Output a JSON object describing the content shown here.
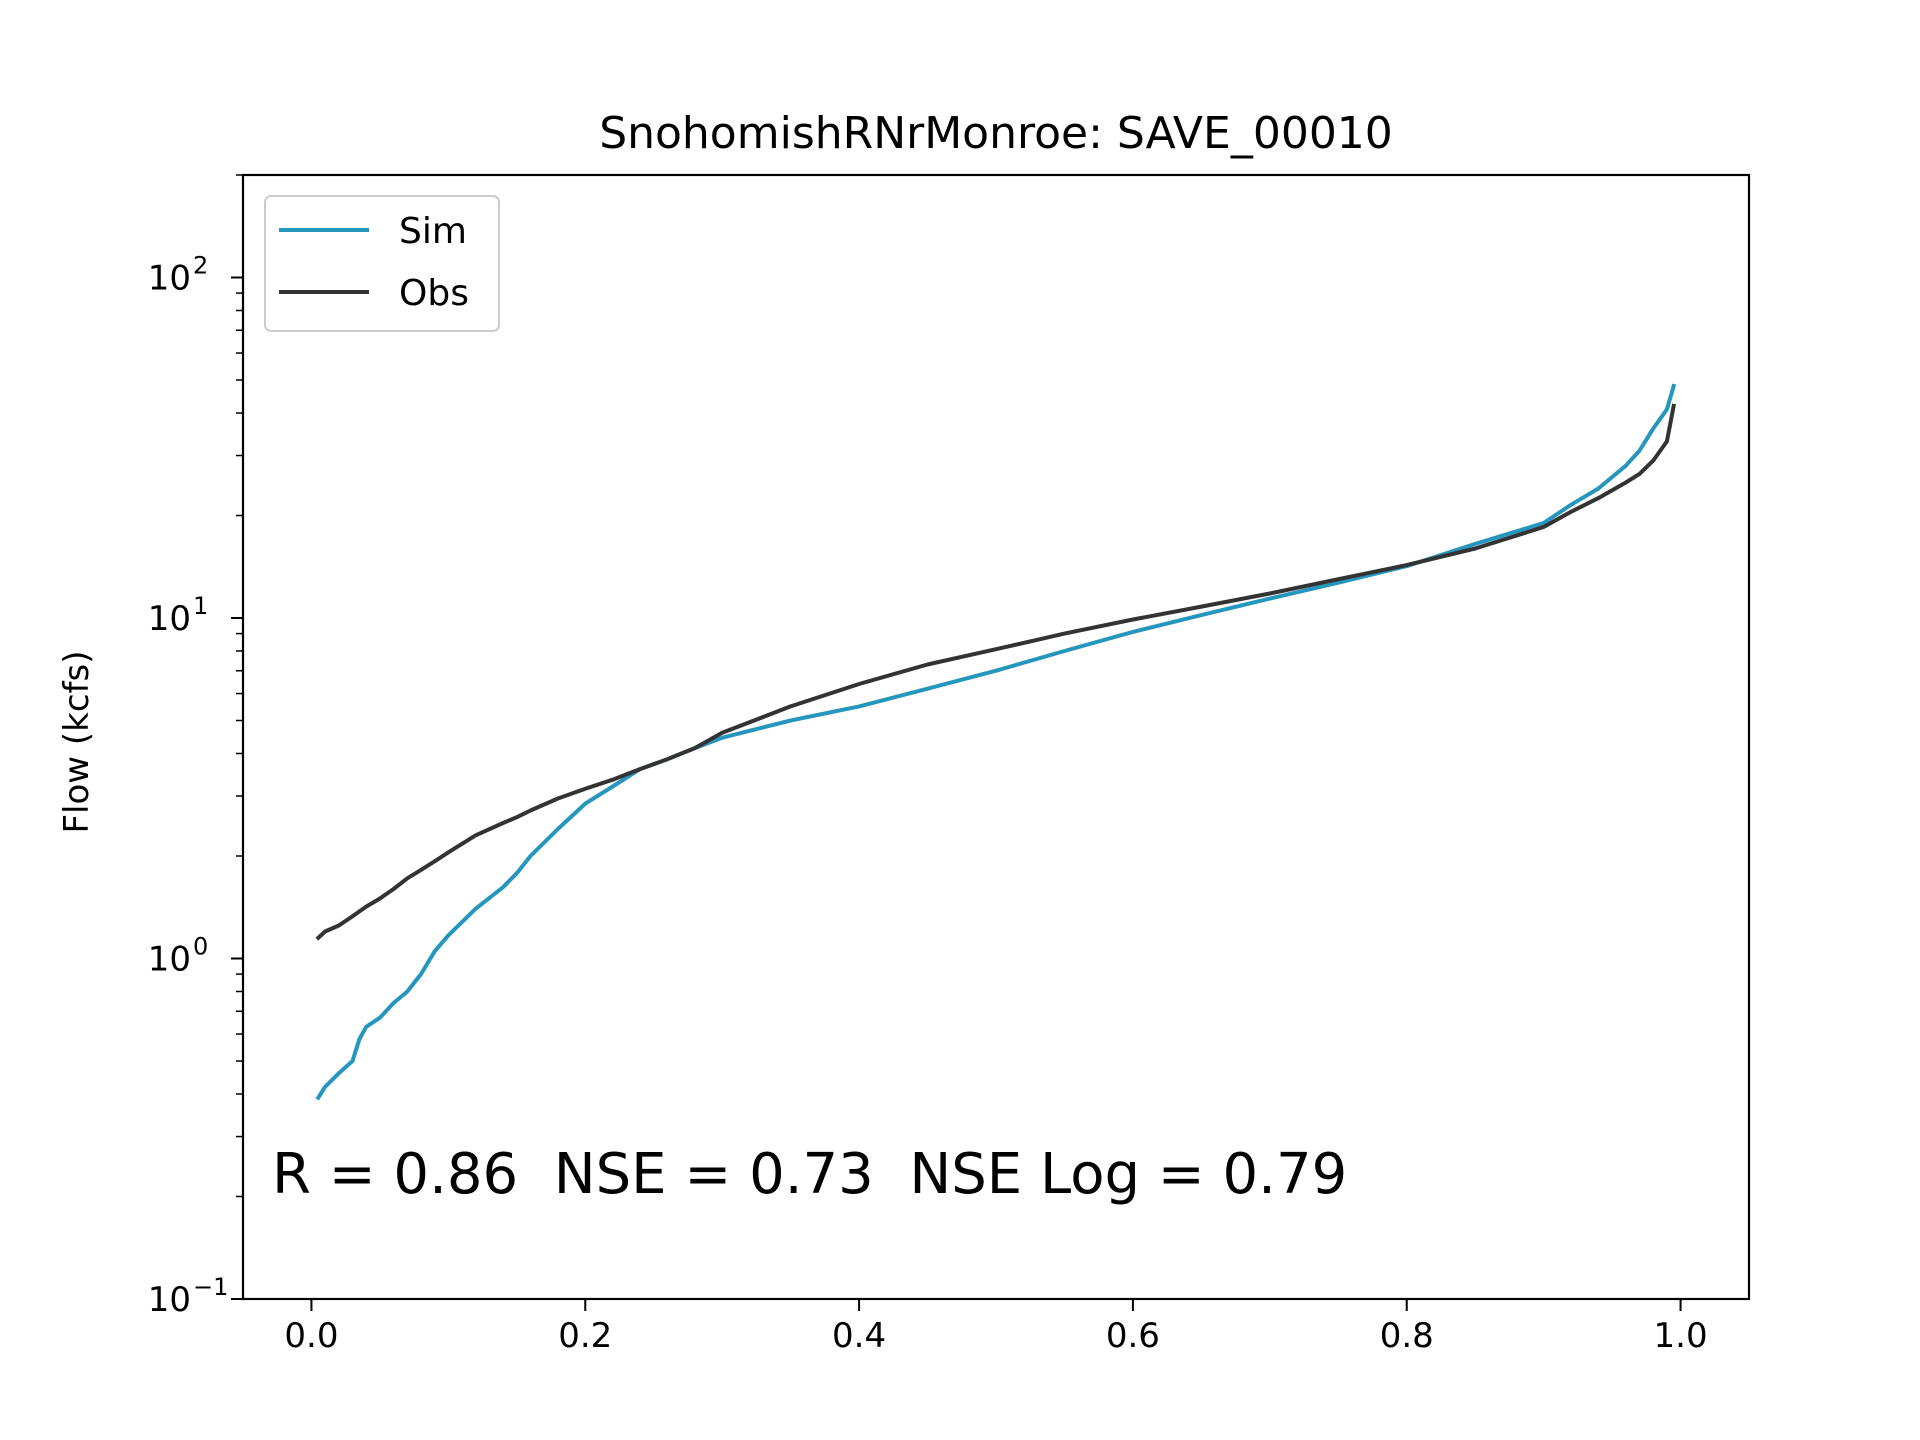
{
  "chart_data": {
    "type": "line",
    "title": "SnohomishRNrMonroe: SAVE_00010",
    "xlabel": "",
    "ylabel": "Flow (kcfs)",
    "xlim": [
      -0.05,
      1.05
    ],
    "ylim": [
      0.1,
      200
    ],
    "yscale": "log",
    "x_ticks": [
      "0.0",
      "0.2",
      "0.4",
      "0.6",
      "0.8",
      "1.0"
    ],
    "y_ticks": [
      {
        "base": "10",
        "exp": "−1",
        "value": 0.1
      },
      {
        "base": "10",
        "exp": "0",
        "value": 1
      },
      {
        "base": "10",
        "exp": "1",
        "value": 10
      },
      {
        "base": "10",
        "exp": "2",
        "value": 100
      }
    ],
    "legend_position": "upper-left",
    "grid": false,
    "annotation": "R = 0.86  NSE = 0.73  NSE Log = 0.79",
    "series": [
      {
        "name": "Sim",
        "color": "#2596be",
        "x": [
          0.005,
          0.01,
          0.02,
          0.03,
          0.035,
          0.04,
          0.05,
          0.06,
          0.07,
          0.08,
          0.09,
          0.1,
          0.12,
          0.14,
          0.15,
          0.16,
          0.18,
          0.2,
          0.22,
          0.24,
          0.26,
          0.28,
          0.3,
          0.35,
          0.4,
          0.45,
          0.5,
          0.55,
          0.6,
          0.65,
          0.7,
          0.75,
          0.8,
          0.85,
          0.9,
          0.92,
          0.94,
          0.96,
          0.97,
          0.98,
          0.99,
          0.995
        ],
        "values": [
          0.39,
          0.42,
          0.46,
          0.5,
          0.58,
          0.63,
          0.67,
          0.74,
          0.8,
          0.9,
          1.05,
          1.17,
          1.4,
          1.62,
          1.78,
          2.0,
          2.4,
          2.85,
          3.2,
          3.6,
          3.85,
          4.15,
          4.45,
          5.0,
          5.5,
          6.2,
          7.0,
          8.0,
          9.1,
          10.2,
          11.4,
          12.7,
          14.2,
          16.5,
          19.0,
          21.5,
          24.0,
          28.0,
          31.0,
          36.0,
          41.0,
          48.0
        ]
      },
      {
        "name": "Obs",
        "color": "#333333",
        "x": [
          0.005,
          0.01,
          0.02,
          0.03,
          0.04,
          0.05,
          0.06,
          0.07,
          0.08,
          0.09,
          0.1,
          0.12,
          0.14,
          0.15,
          0.16,
          0.18,
          0.2,
          0.22,
          0.24,
          0.26,
          0.28,
          0.3,
          0.35,
          0.4,
          0.45,
          0.5,
          0.55,
          0.6,
          0.65,
          0.7,
          0.75,
          0.8,
          0.85,
          0.9,
          0.92,
          0.94,
          0.96,
          0.97,
          0.98,
          0.99,
          0.995
        ],
        "values": [
          1.15,
          1.2,
          1.25,
          1.33,
          1.42,
          1.5,
          1.6,
          1.72,
          1.82,
          1.93,
          2.05,
          2.3,
          2.5,
          2.6,
          2.72,
          2.95,
          3.15,
          3.35,
          3.6,
          3.85,
          4.15,
          4.6,
          5.5,
          6.4,
          7.3,
          8.1,
          9.0,
          9.9,
          10.8,
          11.8,
          13.0,
          14.3,
          16.0,
          18.5,
          20.5,
          22.5,
          25.0,
          26.5,
          29.0,
          33.0,
          42.0
        ]
      }
    ]
  }
}
